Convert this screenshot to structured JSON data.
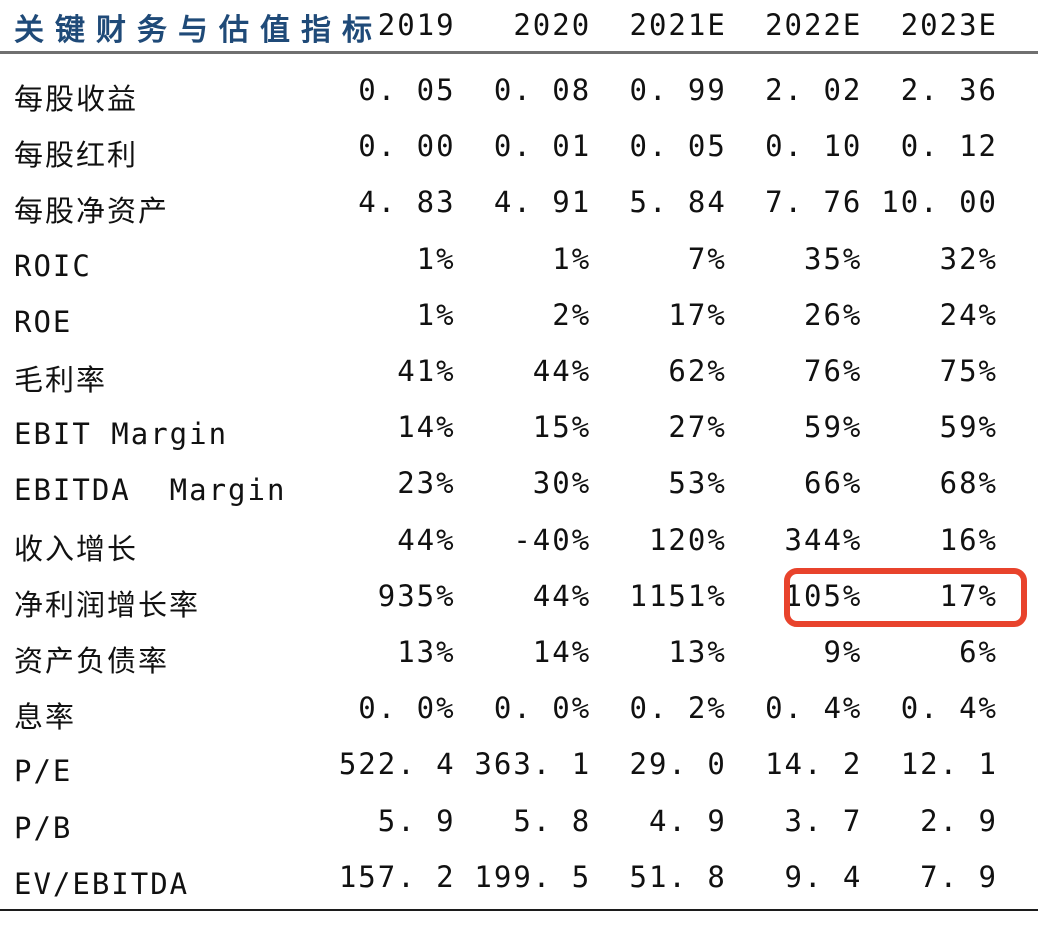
{
  "colors": {
    "title_text": "#1f4a78",
    "highlight_box": "#e8432c",
    "header_rule": "#707070",
    "bottom_rule": "#1c1c1c",
    "body_text": "#111111"
  },
  "table": {
    "header": {
      "title": "关键财务与估值指标",
      "years": [
        "2019",
        "2020",
        "2021E",
        "2022E",
        "2023E"
      ]
    },
    "rows": [
      {
        "label": "每股收益",
        "values": [
          "0. 05",
          "0. 08",
          "0. 99",
          "2. 02",
          "2. 36"
        ]
      },
      {
        "label": "每股红利",
        "values": [
          "0. 00",
          "0. 01",
          "0. 05",
          "0. 10",
          "0. 12"
        ]
      },
      {
        "label": "每股净资产",
        "values": [
          "4. 83",
          "4. 91",
          "5. 84",
          "7. 76",
          "10. 00"
        ]
      },
      {
        "label": "ROIC",
        "values": [
          "1%",
          "1%",
          "7%",
          "35%",
          "32%"
        ]
      },
      {
        "label": "ROE",
        "values": [
          "1%",
          "2%",
          "17%",
          "26%",
          "24%"
        ]
      },
      {
        "label": "毛利率",
        "values": [
          "41%",
          "44%",
          "62%",
          "76%",
          "75%"
        ]
      },
      {
        "label": "EBIT Margin",
        "values": [
          "14%",
          "15%",
          "27%",
          "59%",
          "59%"
        ]
      },
      {
        "label": "EBITDA  Margin",
        "values": [
          "23%",
          "30%",
          "53%",
          "66%",
          "68%"
        ]
      },
      {
        "label": "收入增长",
        "values": [
          "44%",
          "-40%",
          "120%",
          "344%",
          "16%"
        ]
      },
      {
        "label": "净利润增长率",
        "values": [
          "935%",
          "44%",
          "1151%",
          "105%",
          "17%"
        ]
      },
      {
        "label": "资产负债率",
        "values": [
          "13%",
          "14%",
          "13%",
          "9%",
          "6%"
        ]
      },
      {
        "label": "息率",
        "values": [
          "0. 0%",
          "0. 0%",
          "0. 2%",
          "0. 4%",
          "0. 4%"
        ]
      },
      {
        "label": "P/E",
        "values": [
          "522. 4",
          "363. 1",
          "29. 0",
          "14. 2",
          "12. 1"
        ]
      },
      {
        "label": "P/B",
        "values": [
          "5. 9",
          "5. 8",
          "4. 9",
          "3. 7",
          "2. 9"
        ]
      },
      {
        "label": "EV/EBITDA",
        "values": [
          "157. 2",
          "199. 5",
          "51. 8",
          "9. 4",
          "7. 9"
        ]
      }
    ],
    "highlight": {
      "row_label": "净利润增长率",
      "columns": [
        "2022E",
        "2023E"
      ],
      "values": [
        "105%",
        "17%"
      ]
    }
  },
  "chart_data": {
    "type": "table",
    "title": "关键财务与估值指标",
    "columns": [
      "关键财务与估值指标",
      "2019",
      "2020",
      "2021E",
      "2022E",
      "2023E"
    ],
    "rows": [
      [
        "每股收益",
        "0.05",
        "0.08",
        "0.99",
        "2.02",
        "2.36"
      ],
      [
        "每股红利",
        "0.00",
        "0.01",
        "0.05",
        "0.10",
        "0.12"
      ],
      [
        "每股净资产",
        "4.83",
        "4.91",
        "5.84",
        "7.76",
        "10.00"
      ],
      [
        "ROIC",
        "1%",
        "1%",
        "7%",
        "35%",
        "32%"
      ],
      [
        "ROE",
        "1%",
        "2%",
        "17%",
        "26%",
        "24%"
      ],
      [
        "毛利率",
        "41%",
        "44%",
        "62%",
        "76%",
        "75%"
      ],
      [
        "EBIT Margin",
        "14%",
        "15%",
        "27%",
        "59%",
        "59%"
      ],
      [
        "EBITDA Margin",
        "23%",
        "30%",
        "53%",
        "66%",
        "68%"
      ],
      [
        "收入增长",
        "44%",
        "-40%",
        "120%",
        "344%",
        "16%"
      ],
      [
        "净利润增长率",
        "935%",
        "44%",
        "1151%",
        "105%",
        "17%"
      ],
      [
        "资产负债率",
        "13%",
        "14%",
        "13%",
        "9%",
        "6%"
      ],
      [
        "息率",
        "0.0%",
        "0.0%",
        "0.2%",
        "0.4%",
        "0.4%"
      ],
      [
        "P/E",
        "522.4",
        "363.1",
        "29.0",
        "14.2",
        "12.1"
      ],
      [
        "P/B",
        "5.9",
        "5.8",
        "4.9",
        "3.7",
        "2.9"
      ],
      [
        "EV/EBITDA",
        "157.2",
        "199.5",
        "51.8",
        "9.4",
        "7.9"
      ]
    ],
    "highlight": {
      "row": "净利润增长率",
      "columns": [
        "2022E",
        "2023E"
      ]
    }
  }
}
